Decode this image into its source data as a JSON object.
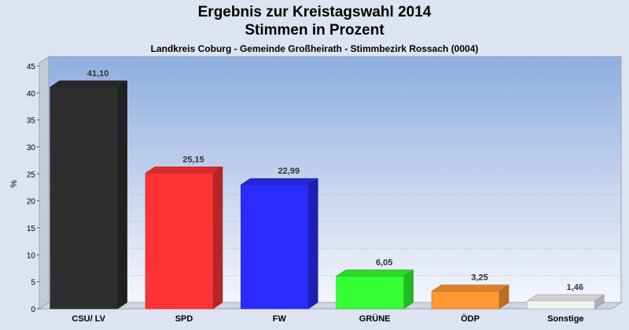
{
  "chart_data": {
    "type": "bar",
    "title_line1": "Ergebnis zur Kreistagswahl 2014",
    "title_line2": "Stimmen in Prozent",
    "subtitle": "Landkreis Coburg - Gemeinde Großheirath - Stimmbezirk Rossach (0004)",
    "ylabel": "%",
    "xlabel": "",
    "ylim": [
      0,
      45
    ],
    "yticks": [
      0,
      5,
      10,
      15,
      20,
      25,
      30,
      35,
      40,
      45
    ],
    "grid": true,
    "categories": [
      "CSU/ LV",
      "SPD",
      "FW",
      "GRÜNE",
      "ÖDP",
      "Sonstige"
    ],
    "values": [
      41.1,
      25.15,
      22.99,
      6.05,
      3.25,
      1.46
    ],
    "value_labels": [
      "41,10",
      "25,15",
      "22,99",
      "6,05",
      "3,25",
      "1,46"
    ],
    "colors": [
      "#2e2e2e",
      "#ff3333",
      "#2b2bff",
      "#33ff33",
      "#ff9933",
      "#f2f2f2"
    ]
  }
}
